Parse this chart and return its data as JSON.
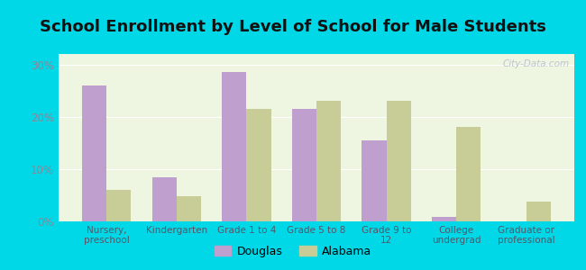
{
  "title": "School Enrollment by Level of School for Male Students",
  "categories": [
    "Nursery,\npreschool",
    "Kindergarten",
    "Grade 1 to 4",
    "Grade 5 to 8",
    "Grade 9 to\n12",
    "College\nundergrad",
    "Graduate or\nprofessional"
  ],
  "douglas": [
    26.0,
    8.5,
    28.5,
    21.5,
    15.5,
    0.8,
    0.0
  ],
  "alabama": [
    6.0,
    4.8,
    21.5,
    23.0,
    23.0,
    18.0,
    3.8
  ],
  "douglas_color": "#bf9fce",
  "alabama_color": "#c8cc96",
  "background_plot": "#eef5e0",
  "background_outer": "#00d8e8",
  "ylim": [
    0,
    32
  ],
  "yticks": [
    0,
    10,
    20,
    30
  ],
  "ytick_labels": [
    "0%",
    "10%",
    "20%",
    "30%"
  ],
  "title_fontsize": 13,
  "legend_douglas": "Douglas",
  "legend_alabama": "Alabama",
  "bar_width": 0.35,
  "watermark": "City-Data.com",
  "tick_color": "#888899",
  "label_color": "#555566"
}
